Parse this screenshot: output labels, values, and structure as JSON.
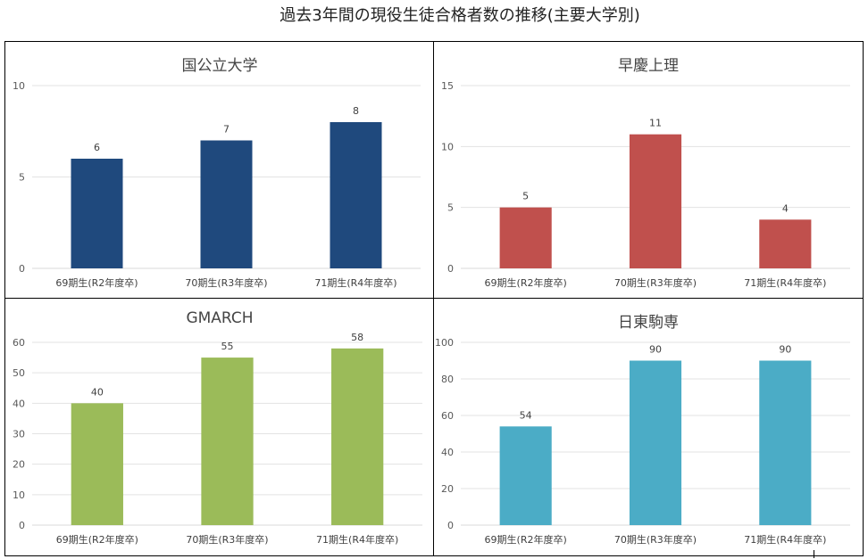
{
  "title": "過去3年間の現役生徒合格者数の推移(主要大学別)",
  "chart_data": [
    {
      "type": "bar",
      "title": "国公立大学",
      "categories": [
        "69期生(R2年度卒)",
        "70期生(R3年度卒)",
        "71期生(R4年度卒)"
      ],
      "values": [
        6,
        7,
        8
      ],
      "ylim": [
        0,
        10
      ],
      "yticks": [
        0,
        5,
        10
      ],
      "color": "#1F497D",
      "xlabel": "",
      "ylabel": ""
    },
    {
      "type": "bar",
      "title": "早慶上理",
      "categories": [
        "69期生(R2年度卒)",
        "70期生(R3年度卒)",
        "71期生(R4年度卒)"
      ],
      "values": [
        5,
        11,
        4
      ],
      "ylim": [
        0,
        15
      ],
      "yticks": [
        0,
        5,
        10,
        15
      ],
      "color": "#C0504D",
      "xlabel": "",
      "ylabel": ""
    },
    {
      "type": "bar",
      "title": "GMARCH",
      "categories": [
        "69期生(R2年度卒)",
        "70期生(R3年度卒)",
        "71期生(R4年度卒)"
      ],
      "values": [
        40,
        55,
        58
      ],
      "ylim": [
        0,
        60
      ],
      "yticks": [
        0,
        10,
        20,
        30,
        40,
        50,
        60
      ],
      "color": "#9BBB59",
      "xlabel": "",
      "ylabel": ""
    },
    {
      "type": "bar",
      "title": "日東駒専",
      "categories": [
        "69期生(R2年度卒)",
        "70期生(R3年度卒)",
        "71期生(R4年度卒)"
      ],
      "values": [
        54,
        90,
        90
      ],
      "ylim": [
        0,
        100
      ],
      "yticks": [
        0,
        20,
        40,
        60,
        80,
        100
      ],
      "color": "#4BACC6",
      "xlabel": "",
      "ylabel": ""
    }
  ]
}
